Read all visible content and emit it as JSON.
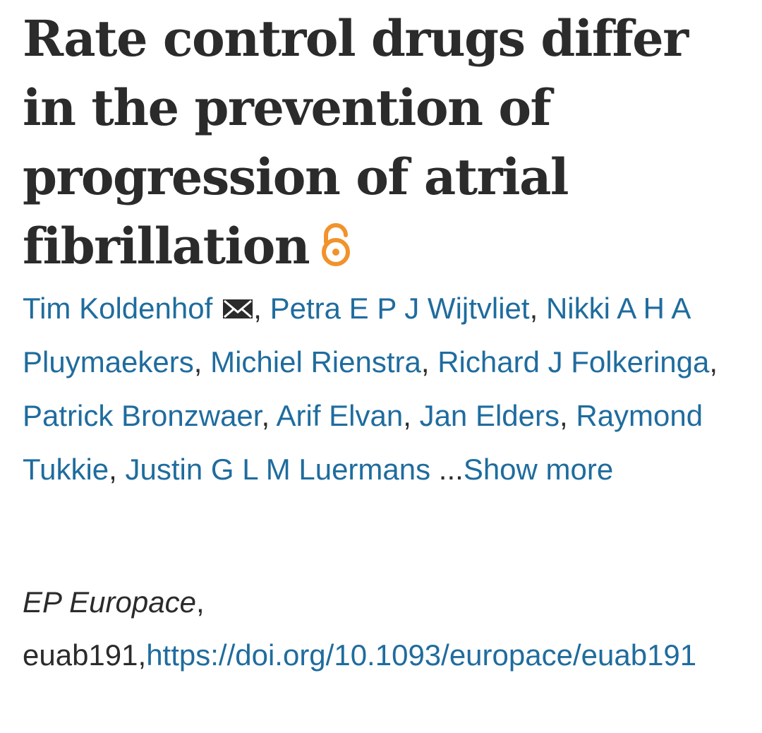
{
  "article": {
    "title": "Rate control drugs differ in the prevention of progression of atrial fibrillation",
    "open_access_icon": "open-access-lock-icon",
    "authors": [
      "Tim Koldenhof",
      "Petra E P J Wijtvliet",
      "Nikki A H A Pluymaekers",
      "Michiel Rienstra",
      "Richard J Folkeringa",
      "Patrick Bronzwaer",
      "Arif Elvan",
      "Jan Elders",
      "Raymond Tukkie",
      "Justin G L M Luermans"
    ],
    "corresponding_author_icon": "envelope-icon",
    "ellipsis": "...",
    "show_more_label": "Show more",
    "journal": "EP Europace",
    "article_id": "euab191",
    "doi_url": "https://doi.org/10.1093/europace/euab191"
  },
  "colors": {
    "link": "#1f6c9e",
    "text": "#2b2b2b",
    "open_access": "#f0932b"
  }
}
